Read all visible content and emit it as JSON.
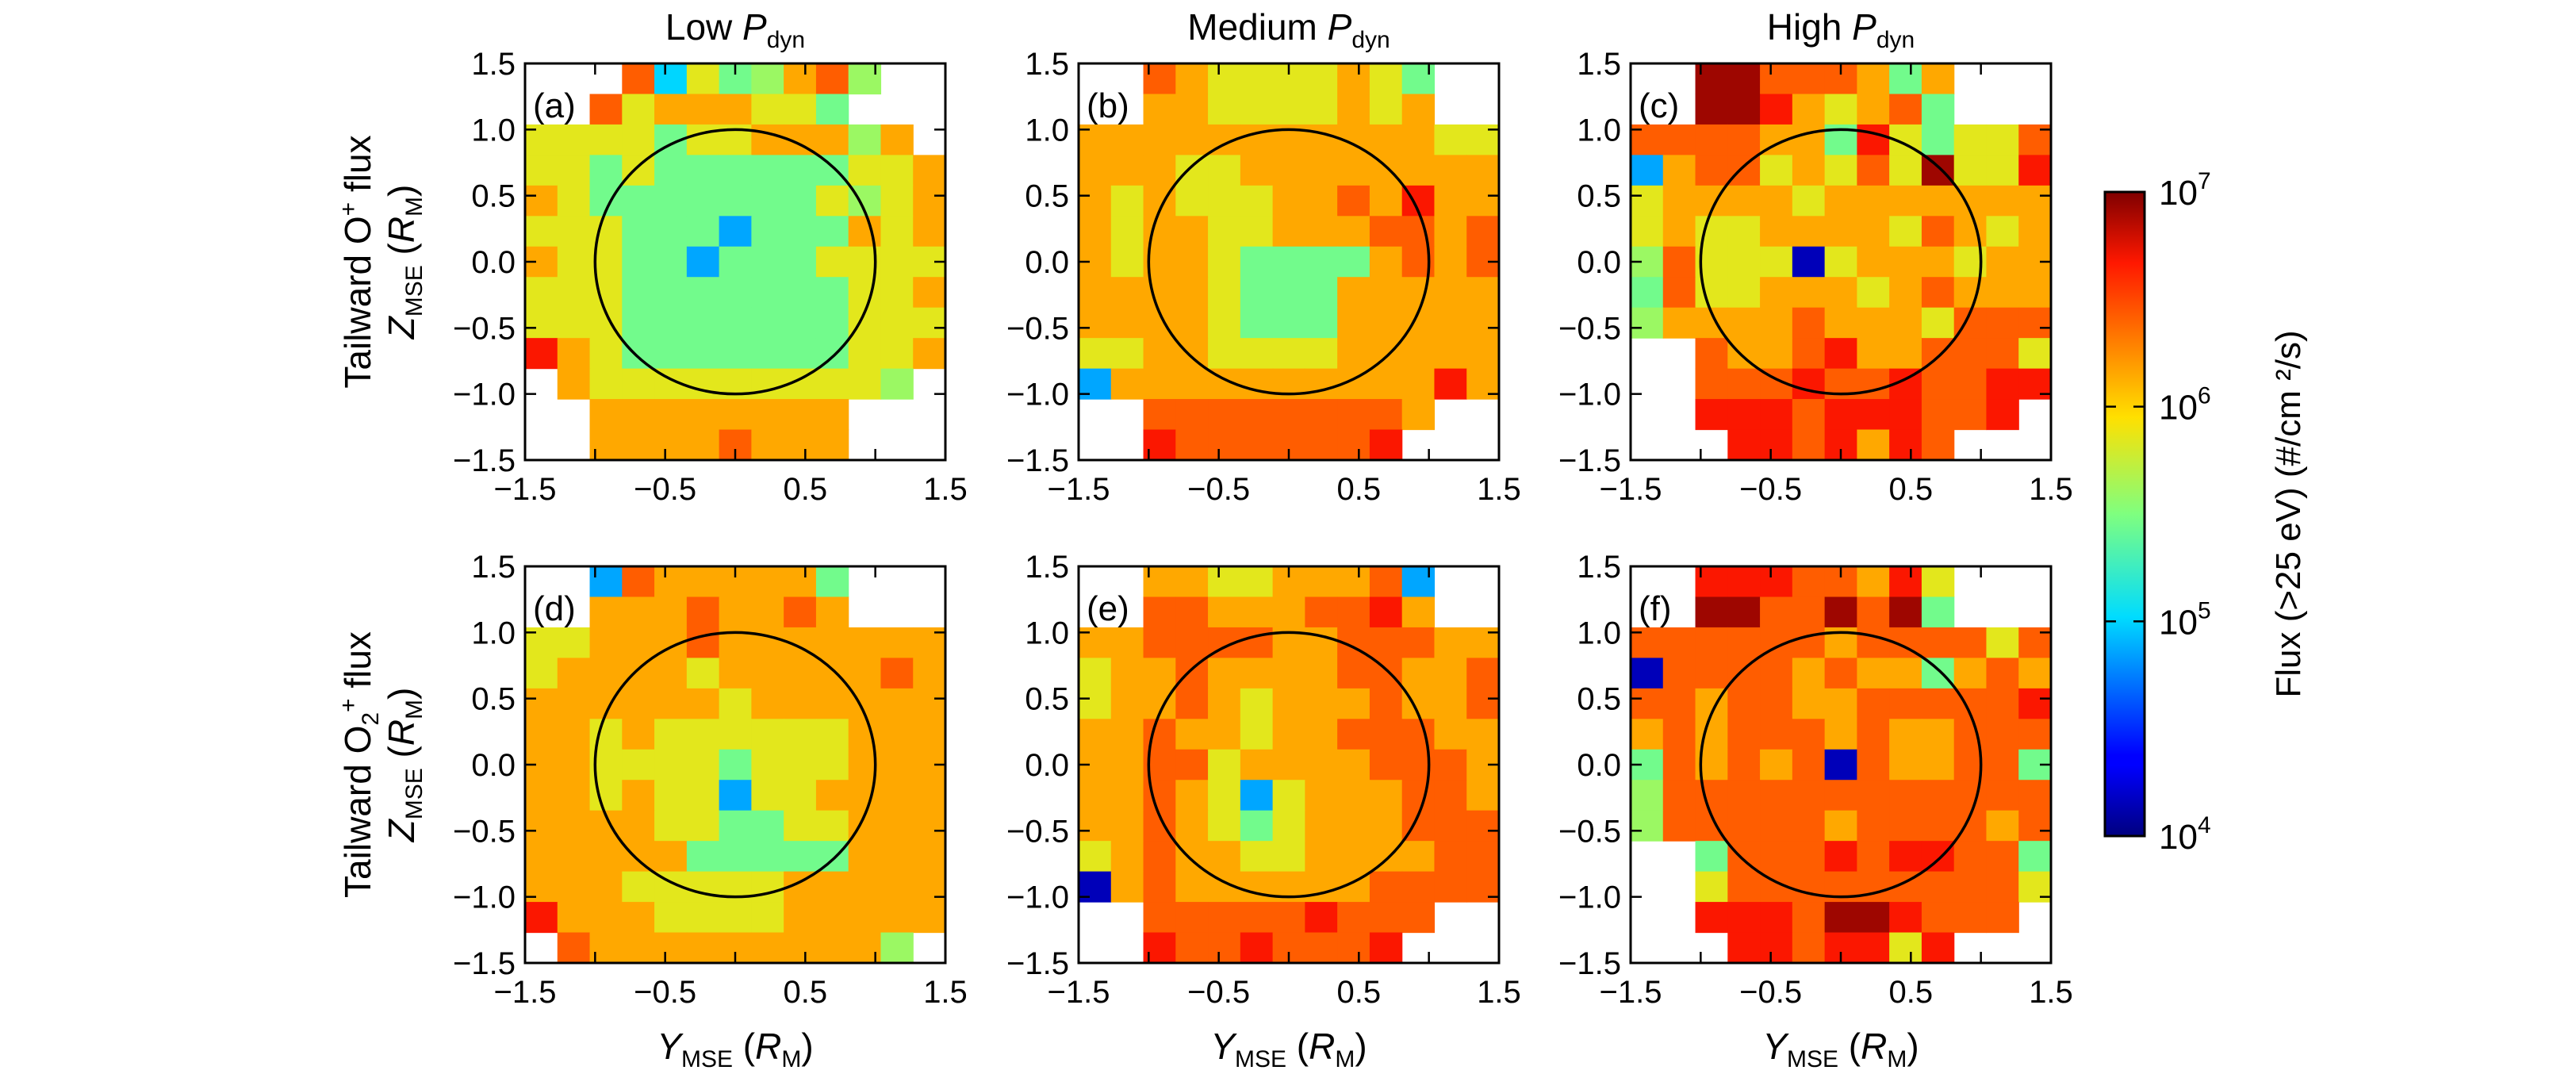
{
  "chart_data": {
    "type": "heatmap",
    "grid_size": 13,
    "extent": [
      -1.5,
      1.5
    ],
    "ticks": [
      -1.5,
      -1.0,
      -0.5,
      0.0,
      0.5,
      1.0,
      1.5
    ],
    "x_tick_labels": [
      "−1.5",
      "−0.5",
      "0.5",
      "1.5"
    ],
    "y_tick_labels": [
      "1.5",
      "1.0",
      "0.5",
      "0.0",
      "−0.5",
      "−1.0",
      "−1.5"
    ],
    "x_tick_values": [
      -1.5,
      -0.5,
      0.5,
      1.5
    ],
    "y_tick_values": [
      1.5,
      1.0,
      0.5,
      0.0,
      -0.5,
      -1.0,
      -1.5
    ],
    "circle_radius": 1.0,
    "xlabel": {
      "symbol": "Y",
      "sub": "MSE",
      "unit_open": "(",
      "unit_sym": "R",
      "unit_sub": "M",
      "unit_close": ")"
    },
    "ylabel": {
      "symbol": "Z",
      "sub": "MSE",
      "unit_open": "(",
      "unit_sym": "R",
      "unit_sub": "M",
      "unit_close": ")"
    },
    "columns": [
      {
        "prefix": "Low ",
        "symbol": "P",
        "sub": "dyn"
      },
      {
        "prefix": "Medium ",
        "symbol": "P",
        "sub": "dyn"
      },
      {
        "prefix": "High ",
        "symbol": "P",
        "sub": "dyn"
      }
    ],
    "rows": [
      {
        "text": "Tailward O",
        "sub": "",
        "sup": "+",
        "after": " flux"
      },
      {
        "text": "Tailward O",
        "sub": "2",
        "sup": "+",
        "after": " flux"
      }
    ],
    "colorbar": {
      "label": "Flux (>25 eV) (#/cm ²/s)",
      "scale": "log",
      "range": [
        10000,
        10000000
      ],
      "ticks": [
        {
          "base": "10",
          "exp": "7",
          "log": 7
        },
        {
          "base": "10",
          "exp": "6",
          "log": 6
        },
        {
          "base": "10",
          "exp": "5",
          "log": 5
        },
        {
          "base": "10",
          "exp": "4",
          "log": 4
        }
      ]
    },
    "panels": [
      {
        "label": "(a)",
        "values": [
          "...5B32-45-....",
          "..53444332...",
          "3333233444-4.",
          "3323222222334",
          "4322222223-34",
          "3332221222434",
          "4332212223333",
          "3332222222334",
          "3332222222333",
          "6432222222334",
          ".4333333333-.",
          "..44444444...",
          "..44445444..."
        ]
      },
      {
        "label": "(b)",
        "values": [
          "..543333432..",
          "..443333434..",
          "4444444444433",
          "4443344444444",
          "4343334454644",
          "4344334445545",
          "4344322224545",
          "4444322244444",
          "4444322244444",
          "3344333344444",
          "1444444444464",
          "..555555554..",
          "..65555556..."
        ]
      },
      {
        "label": "(c)",
        "values": [
          "..77555424...",
          "..77643452...",
          "5555442632335",
          "1455343537336",
          "3444434444444",
          "3433444435434",
          "-533303444344",
          "2533444345444",
          "-444454443555",
          "..54456445553",
          "..55565565566",
          "..6665666556.",
          "...6656465..."
        ]
      },
      {
        "label": "(d)",
        "values": [
          "..15444442...",
          "..44454454...",
          "3344454444444",
          "3444434444454",
          "4444443444444",
          "4434333333444",
          "4433332333444",
          "4434331334444",
          "4444332233444",
          "4444422222444",
          "4443333344444",
          "6444333344444",
          ".5444444444-."
        ]
      },
      {
        "label": "(e)",
        "values": [
          "..443344451..",
          "..554445564..",
          "4455554455544",
          "3445444455445",
          "3445434445445",
          "4454434455544",
          "4455344445554",
          "4454313444554",
          "4454323444555",
          "3454433444455",
          "0454444445555",
          "..555556555..",
          "..65565556..."
        ]
      },
      {
        "label": "(f)",
        "values": [
          "..66655463...",
          "..77557572...",
          "5555554555535",
          "0555545442454",
          "5545544555556",
          "4545554544555",
          "2545450544552",
          "-555555555555",
          "-555554555545",
          "..25556566552",
          "..35555555553",
          "..6665776555.",
          "...6656636..."
        ]
      }
    ]
  }
}
